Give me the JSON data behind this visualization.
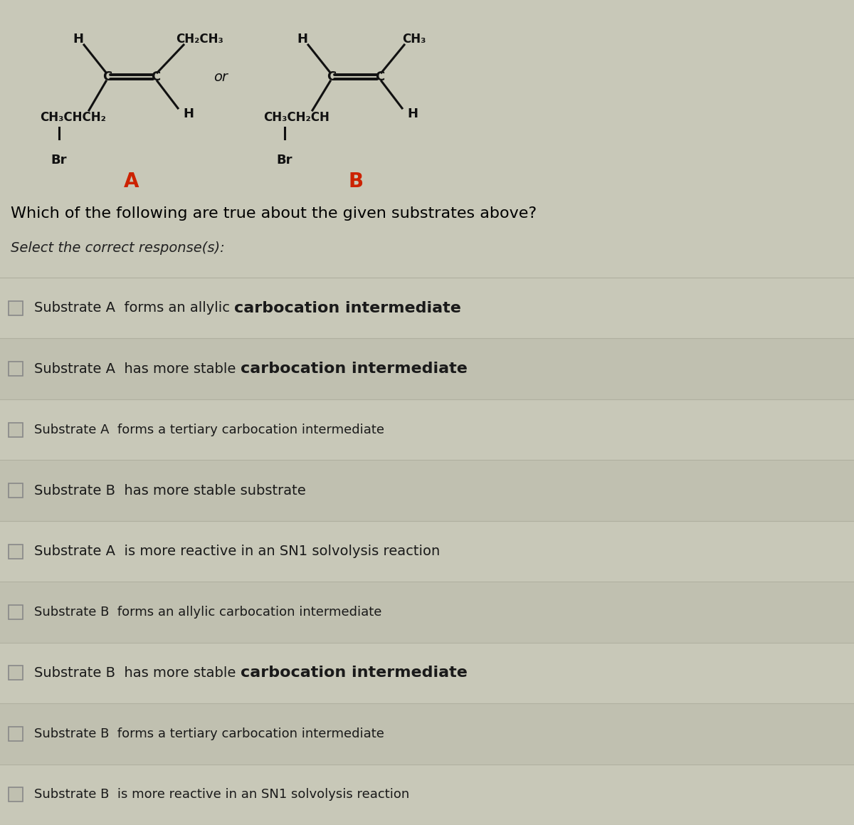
{
  "background_color": "#c8c8b8",
  "title_text": "Which of the following are true about the given substrates above?",
  "subtitle_text": "Select the correct response(s):",
  "title_fontsize": 16,
  "subtitle_fontsize": 14,
  "options": [
    [
      "Substrate A  forms an allylic ",
      "carbocation intermediate",
      ""
    ],
    [
      "Substrate A  has more stable ",
      "carbocation intermediate",
      ""
    ],
    [
      "Substrate A  forms a tertiary carbocation intermediate",
      "",
      ""
    ],
    [
      "Substrate B  has more stable substrate",
      "",
      ""
    ],
    [
      "Substrate A  is more reactive in an SN1 solvolysis reaction",
      "",
      ""
    ],
    [
      "Substrate B  forms an allylic carbocation intermediate",
      "",
      ""
    ],
    [
      "Substrate B  has more stable ",
      "carbocation intermediate",
      ""
    ],
    [
      "Substrate B  forms a tertiary carbocation intermediate",
      "",
      ""
    ],
    [
      "Substrate B  is more reactive in an SN1 solvolysis reaction",
      "",
      ""
    ]
  ],
  "option_fontsize": 15,
  "label_color": "#cc2200",
  "struct_color": "#111111",
  "row_colors": [
    "#c8c8b8",
    "#bfc0b0"
  ],
  "box_edge_color": "#888888",
  "box_face_color": "#c0c0b0"
}
